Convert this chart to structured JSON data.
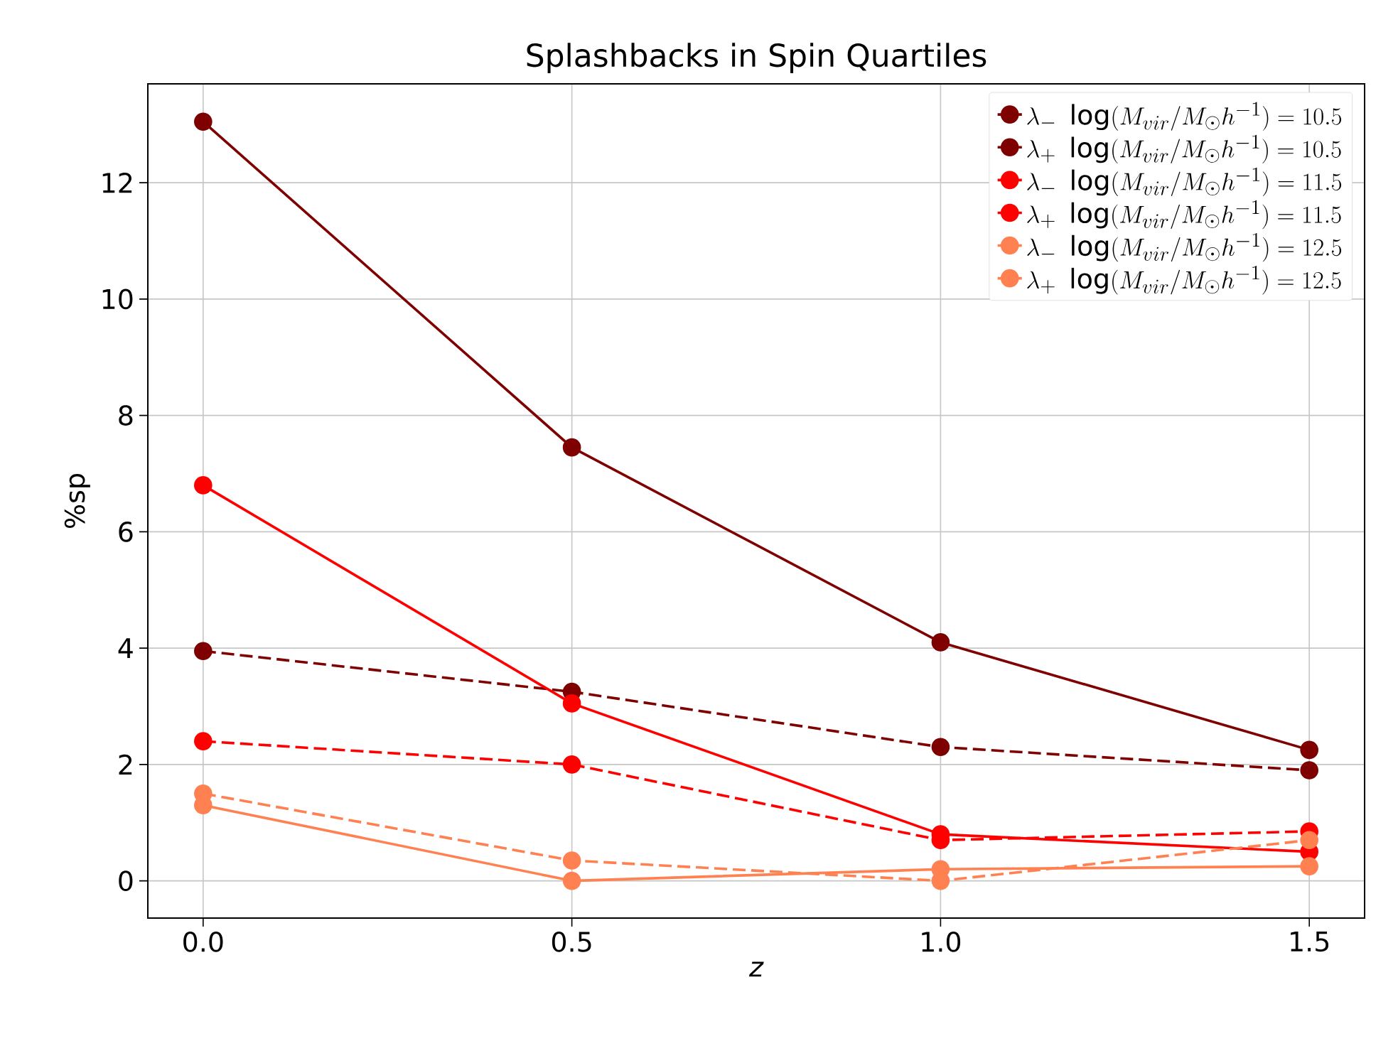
{
  "chart_data": {
    "type": "line",
    "title": "Splashbacks in Spin Quartiles",
    "xlabel": "z",
    "ylabel": "%sp",
    "x": [
      0.0,
      0.5,
      1.0,
      1.5
    ],
    "xlim": [
      -0.075,
      1.575
    ],
    "ylim": [
      -0.64,
      13.7
    ],
    "xticks": [
      {
        "value": 0.0,
        "label": "0.0"
      },
      {
        "value": 0.5,
        "label": "0.5"
      },
      {
        "value": 1.0,
        "label": "1.0"
      },
      {
        "value": 1.5,
        "label": "1.5"
      }
    ],
    "yticks": [
      0,
      2,
      4,
      6,
      8,
      10,
      12
    ],
    "grid": true,
    "legend": "top right",
    "marker": "circle",
    "series": [
      {
        "name": "\\lambda_- \\ \\log(M_{vir}/M_{\\odot} h^{-1}) = 10.5",
        "color": "#7f0000",
        "line_style": "solid",
        "values": [
          13.05,
          7.45,
          4.1,
          2.25
        ]
      },
      {
        "name": "\\lambda_+ \\ \\log(M_{vir}/M_{\\odot} h^{-1}) = 10.5",
        "color": "#7f0000",
        "line_style": "dashed",
        "values": [
          3.95,
          3.25,
          2.3,
          1.9
        ]
      },
      {
        "name": "\\lambda_- \\ \\log(M_{vir}/M_{\\odot} h^{-1}) = 11.5",
        "color": "#ff0000",
        "line_style": "solid",
        "values": [
          6.8,
          3.05,
          0.8,
          0.5
        ]
      },
      {
        "name": "\\lambda_+ \\ \\log(M_{vir}/M_{\\odot} h^{-1}) = 11.5",
        "color": "#ff0000",
        "line_style": "dashed",
        "values": [
          2.4,
          2.0,
          0.7,
          0.85
        ]
      },
      {
        "name": "\\lambda_- \\ \\log(M_{vir}/M_{\\odot} h^{-1}) = 12.5",
        "color": "#ff8050",
        "line_style": "solid",
        "values": [
          1.3,
          0.0,
          0.2,
          0.25
        ]
      },
      {
        "name": "\\lambda_+ \\ \\log(M_{vir}/M_{\\odot} h^{-1}) = 12.5",
        "color": "#ff8050",
        "line_style": "dashed",
        "values": [
          1.5,
          0.35,
          0.0,
          0.7
        ]
      }
    ]
  }
}
